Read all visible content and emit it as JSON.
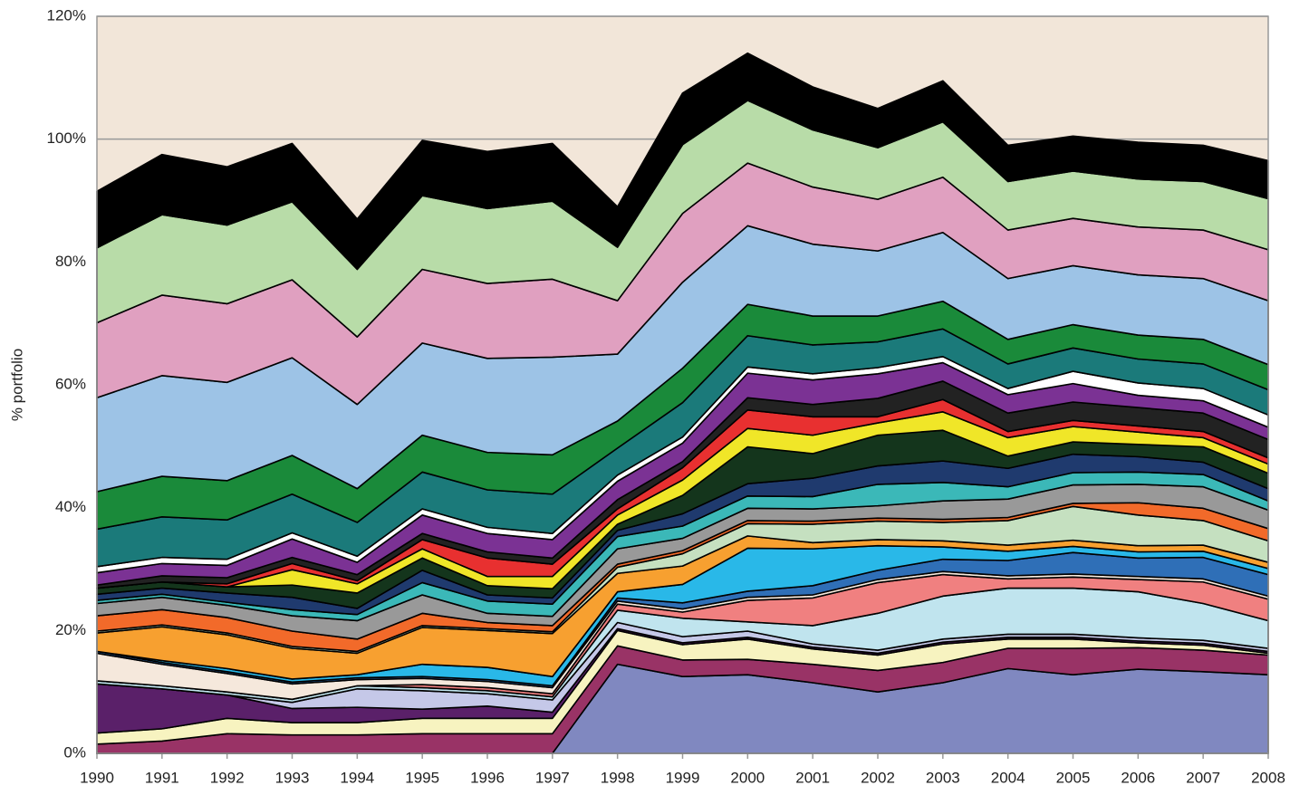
{
  "chart_data": {
    "type": "stacked_area",
    "y_label": "% portfolio",
    "x": [
      1990,
      1991,
      1992,
      1993,
      1994,
      1995,
      1996,
      1997,
      1998,
      1999,
      2000,
      2001,
      2002,
      2003,
      2004,
      2005,
      2006,
      2007,
      2008
    ],
    "xlim": [
      1990,
      2008
    ],
    "xticks": [
      1990,
      1991,
      1992,
      1993,
      1994,
      1995,
      1996,
      1997,
      1998,
      1999,
      2000,
      2001,
      2002,
      2003,
      2004,
      2005,
      2006,
      2007,
      2008
    ],
    "ylim": [
      0,
      120
    ],
    "yticks": [
      {
        "value": 0,
        "label": "0%"
      },
      {
        "value": 20,
        "label": "20%"
      },
      {
        "value": 40,
        "label": "40%"
      },
      {
        "value": 60,
        "label": "60%"
      },
      {
        "value": 80,
        "label": "80%"
      },
      {
        "value": 100,
        "label": "100%"
      },
      {
        "value": 120,
        "label": "120%"
      }
    ],
    "grid": true,
    "background": "#f2e6d9",
    "series": [
      {
        "color": "#8088c0",
        "values": [
          0,
          0,
          0,
          0,
          0,
          0,
          0,
          0,
          14.5,
          12.5,
          12.8,
          11.5,
          10,
          11.5,
          13.8,
          12.8,
          13.7,
          13.3,
          12.8
        ]
      },
      {
        "color": "#993366",
        "values": [
          1.5,
          2,
          3.2,
          3,
          3,
          3.2,
          3.2,
          3.2,
          3,
          2.7,
          2.5,
          3,
          3.5,
          3.3,
          3.3,
          4.3,
          3.5,
          3.5,
          3.2
        ]
      },
      {
        "color": "#f7f3c0",
        "values": [
          1.8,
          2,
          2.5,
          2,
          2,
          2.5,
          2.5,
          2.5,
          2.5,
          2.5,
          3.3,
          2.5,
          2.5,
          3,
          1.5,
          1.5,
          0.8,
          0.8,
          0.3
        ]
      },
      {
        "color": "#5a2069",
        "values": [
          8,
          6.5,
          3.8,
          2.3,
          2.5,
          1.5,
          2,
          1,
          0.3,
          0.3,
          0.3,
          0.3,
          0.3,
          0.3,
          0.3,
          0.3,
          0.3,
          0.3,
          0.3
        ]
      },
      {
        "color": "#c5c8e8",
        "values": [
          0,
          0,
          0,
          1,
          3,
          3,
          2,
          2,
          1,
          1,
          1,
          0.5,
          0.5,
          0.5,
          0.5,
          0.5,
          0.5,
          0.5,
          0.5
        ]
      },
      {
        "color": "#c0e4ee",
        "values": [
          0.5,
          0.5,
          0.5,
          0.5,
          0.5,
          0.5,
          0.5,
          0.5,
          2,
          3,
          1.5,
          3,
          6,
          7,
          7.5,
          7.5,
          7.5,
          6,
          4.5
        ]
      },
      {
        "color": "#f08080",
        "values": [
          0,
          0,
          0,
          0,
          0,
          0.5,
          0.5,
          0.5,
          1,
          1,
          3.5,
          4.5,
          5,
          3.5,
          1.5,
          1.8,
          2,
          3.5,
          3.5
        ]
      },
      {
        "color": "#f5e8dc",
        "values": [
          4.5,
          3.5,
          3,
          2.5,
          1,
          1,
          1,
          1,
          0.5,
          0.5,
          0.5,
          0.5,
          0.5,
          0.5,
          0.5,
          0.5,
          0.5,
          0.5,
          0.5
        ]
      },
      {
        "color": "#2f6fb7",
        "values": [
          0.3,
          0.3,
          0.3,
          0.3,
          0.3,
          0.3,
          0.3,
          0.3,
          0.5,
          1,
          1,
          1.5,
          1.5,
          2,
          2.5,
          3.5,
          3,
          3.5,
          3.5
        ]
      },
      {
        "color": "#29b8e8",
        "values": [
          0,
          0.3,
          0.5,
          0.5,
          0.5,
          2,
          2,
          1.5,
          1,
          3,
          7,
          6,
          4,
          2,
          1.5,
          1,
          1,
          1,
          1
        ]
      },
      {
        "color": "#f7a030",
        "values": [
          3,
          5.5,
          5.5,
          5,
          3.5,
          6,
          6,
          7,
          3,
          3,
          2,
          1,
          1,
          1,
          1,
          1,
          1,
          1,
          1
        ]
      },
      {
        "color": "#c5e0c0",
        "values": [
          0.3,
          0.3,
          0.3,
          0.3,
          0.3,
          0.3,
          0.3,
          0.3,
          1,
          2,
          2,
          3,
          3,
          3,
          4,
          5.5,
          5,
          4,
          3.5
        ]
      },
      {
        "color": "#f26a2a",
        "values": [
          2.5,
          2.5,
          2.5,
          2.5,
          2,
          2,
          1,
          1,
          0.5,
          0.5,
          0.5,
          0.5,
          0.5,
          0.5,
          0.5,
          0.5,
          2,
          2,
          2
        ]
      },
      {
        "color": "#999999",
        "values": [
          2,
          2,
          2,
          2.5,
          3,
          3,
          1.5,
          1.5,
          2.5,
          2,
          2,
          2,
          2,
          3,
          3,
          3,
          3,
          3.5,
          3
        ]
      },
      {
        "color": "#3bb8b8",
        "values": [
          0.5,
          0.5,
          0.5,
          1,
          1,
          2,
          2,
          2,
          2,
          2,
          2,
          2,
          3.5,
          3,
          2,
          2,
          2,
          2,
          1.5
        ]
      },
      {
        "color": "#1f3a6e",
        "values": [
          1,
          1,
          1.5,
          2,
          1,
          2,
          1,
          1,
          1,
          2,
          2,
          3,
          3,
          3.5,
          3,
          3,
          2.5,
          2,
          2
        ]
      },
      {
        "color": "#14351c",
        "values": [
          1,
          1,
          1,
          2,
          2.5,
          2,
          1.5,
          1.5,
          1,
          3,
          6,
          4,
          5,
          5,
          2,
          2,
          2,
          2.5,
          2.5
        ]
      },
      {
        "color": "#f0e628",
        "values": [
          0,
          0,
          0,
          2.5,
          1.5,
          1.5,
          1.5,
          2,
          1.5,
          2.5,
          3,
          3,
          2,
          3,
          3,
          2.5,
          2,
          1.5,
          1.5
        ]
      },
      {
        "color": "#e83030",
        "values": [
          0,
          0,
          0.5,
          1,
          0.5,
          1.5,
          3,
          2,
          1,
          2,
          3,
          3,
          1,
          2,
          1,
          1,
          1,
          1,
          1
        ]
      },
      {
        "color": "#222222",
        "values": [
          0.5,
          1,
          1,
          1,
          1,
          1,
          1,
          1,
          1.5,
          1,
          2,
          2,
          3,
          3,
          3,
          3,
          3,
          3,
          3
        ]
      },
      {
        "color": "#7b3294",
        "values": [
          2,
          2,
          2,
          3,
          2,
          3,
          3,
          3,
          3,
          3,
          4,
          4,
          4,
          3,
          3,
          3,
          2,
          2,
          2
        ]
      },
      {
        "color": "#ffffff",
        "values": [
          1,
          1,
          1,
          1,
          1,
          1,
          1,
          1,
          1,
          1,
          1,
          1,
          1,
          1,
          1,
          2,
          2,
          2,
          2
        ]
      },
      {
        "color": "#1b7a7a",
        "values": [
          6.1,
          6.6,
          6.4,
          6.3,
          5.5,
          6,
          6.1,
          6.4,
          4.4,
          5.6,
          5.1,
          4.7,
          4.2,
          4.5,
          4,
          3.8,
          3.9,
          4,
          4.1
        ]
      },
      {
        "color": "#1a8a3a",
        "values": [
          6.1,
          6.6,
          6.4,
          6.3,
          5.5,
          6,
          6.1,
          6.4,
          4.4,
          5.6,
          5.1,
          4.7,
          4.2,
          4.5,
          4,
          3.8,
          3.9,
          4,
          4.1
        ]
      },
      {
        "color": "#9dc3e6",
        "values": [
          15.3,
          16.4,
          16,
          15.9,
          13.7,
          15,
          15.3,
          15.9,
          10.9,
          14,
          12.8,
          11.7,
          10.6,
          11.2,
          9.9,
          9.6,
          9.8,
          9.9,
          10.4
        ]
      },
      {
        "color": "#e0a0c0",
        "values": [
          12.2,
          13.1,
          12.8,
          12.7,
          11,
          12,
          12.2,
          12.7,
          8.7,
          11.2,
          10.2,
          9.3,
          8.4,
          9,
          7.9,
          7.7,
          7.8,
          7.9,
          8.3
        ]
      },
      {
        "color": "#b8dca8",
        "values": [
          12.2,
          13.1,
          12.8,
          12.7,
          11,
          12,
          12.2,
          12.7,
          8.7,
          11.2,
          10.2,
          9.3,
          8.4,
          9,
          7.9,
          7.7,
          7.8,
          7.9,
          8.3
        ]
      },
      {
        "color": "#000000",
        "values": [
          9.2,
          9.8,
          9.5,
          9.5,
          8.2,
          9,
          9.3,
          9.4,
          6.6,
          8.4,
          7.7,
          7,
          6.4,
          6.7,
          5.9,
          5.7,
          6,
          5.9,
          6.2
        ]
      }
    ]
  }
}
